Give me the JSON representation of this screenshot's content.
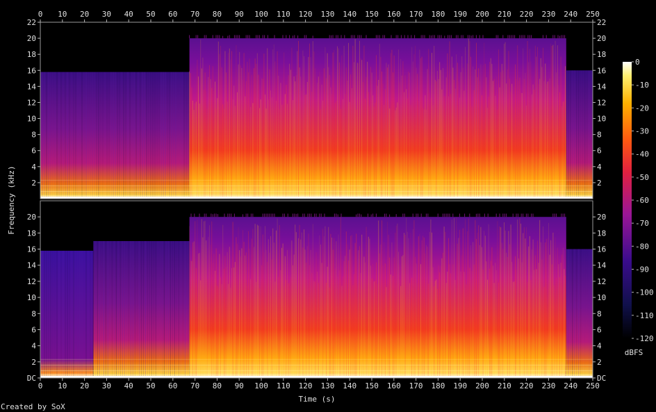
{
  "chart_data": {
    "type": "heatmap",
    "title": "",
    "xlabel": "Time (s)",
    "ylabel": "Frequency (kHz)",
    "xlim": [
      0,
      250
    ],
    "ylim": [
      0,
      22
    ],
    "x_ticks": [
      "0",
      "10",
      "20",
      "30",
      "40",
      "50",
      "60",
      "70",
      "80",
      "90",
      "100",
      "110",
      "120",
      "130",
      "140",
      "150",
      "160",
      "170",
      "180",
      "190",
      "200",
      "210",
      "220",
      "230",
      "240",
      "250"
    ],
    "channels": [
      {
        "y_ticks": [
          "2",
          "4",
          "6",
          "8",
          "10",
          "12",
          "14",
          "16",
          "18",
          "20",
          "22"
        ],
        "segments": [
          {
            "t_start": 0,
            "t_end": 67.5,
            "cutoff_khz": 15.8,
            "note": "band-limited"
          },
          {
            "t_start": 67.5,
            "t_end": 238,
            "cutoff_khz": 20.0
          },
          {
            "t_start": 238,
            "t_end": 250,
            "cutoff_khz": 16.0
          }
        ]
      },
      {
        "y_ticks": [
          "DC",
          "2",
          "4",
          "6",
          "8",
          "10",
          "12",
          "14",
          "16",
          "18",
          "20"
        ],
        "segments": [
          {
            "t_start": 0,
            "t_end": 24,
            "cutoff_khz": 15.8
          },
          {
            "t_start": 24,
            "t_end": 67.5,
            "cutoff_khz": 17.0
          },
          {
            "t_start": 67.5,
            "t_end": 238,
            "cutoff_khz": 20.0
          },
          {
            "t_start": 238,
            "t_end": 250,
            "cutoff_khz": 16.0
          }
        ]
      }
    ],
    "colorbar": {
      "label": "dBFS",
      "range": [
        -120,
        0
      ],
      "ticks": [
        "0",
        "-10",
        "-20",
        "-30",
        "-40",
        "-50",
        "-60",
        "-70",
        "-80",
        "-90",
        "-100",
        "-110",
        "-120"
      ]
    },
    "colors": {
      "background": "#000000",
      "low": "#000000",
      "mid_low": "#2d0a78",
      "mid": "#a3159a",
      "mid_high": "#f02020",
      "high": "#ffb000",
      "max": "#ffffff"
    }
  },
  "footer": {
    "credit": "Created by SoX"
  }
}
